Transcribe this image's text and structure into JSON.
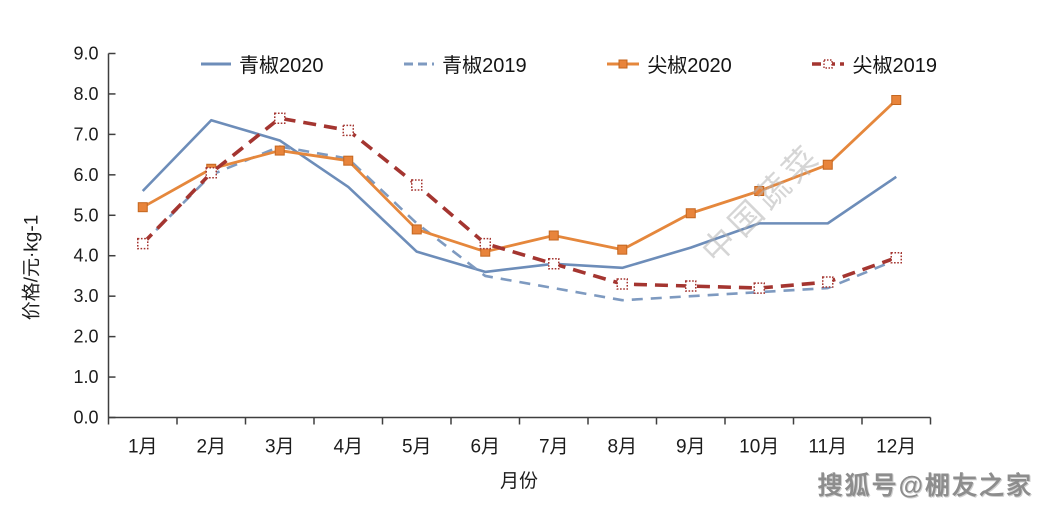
{
  "watermarks": {
    "center": "中国蔬菜",
    "bottom_right": "搜狐号@棚友之家"
  },
  "chart_data": {
    "type": "line",
    "title": "",
    "xlabel": "月份",
    "ylabel": "价格/元·kg-1",
    "ylim": [
      0.0,
      9.0
    ],
    "ytick_step": 1.0,
    "ytick_labels": [
      "0.0",
      "1.0",
      "2.0",
      "3.0",
      "4.0",
      "5.0",
      "6.0",
      "7.0",
      "8.0",
      "9.0"
    ],
    "categories": [
      "1月",
      "2月",
      "3月",
      "4月",
      "5月",
      "6月",
      "7月",
      "8月",
      "9月",
      "10月",
      "11月",
      "12月"
    ],
    "grid": "off",
    "legend_position": "top",
    "series": [
      {
        "name": "青椒2020",
        "color": "#6d8db9",
        "dash": "",
        "width": 2.6,
        "marker": "none",
        "values": [
          5.6,
          7.35,
          6.85,
          5.7,
          4.1,
          3.6,
          3.8,
          3.7,
          4.2,
          4.8,
          4.8,
          5.95
        ]
      },
      {
        "name": "青椒2019",
        "color": "#7e9ac0",
        "dash": "11,8",
        "width": 2.6,
        "marker": "none",
        "values": [
          4.3,
          6.0,
          6.7,
          6.4,
          4.8,
          3.5,
          3.2,
          2.9,
          3.0,
          3.1,
          3.2,
          3.9
        ]
      },
      {
        "name": "尖椒2020",
        "color": "#e5873c",
        "dash": "",
        "width": 2.8,
        "marker": "square",
        "marker_size": 9,
        "marker_fill": "#e8843b",
        "marker_stroke": "#c4661f",
        "values": [
          5.2,
          6.15,
          6.6,
          6.35,
          4.65,
          4.1,
          4.5,
          4.15,
          5.05,
          5.6,
          6.25,
          7.85
        ]
      },
      {
        "name": "尖椒2019",
        "color": "#a43530",
        "dash": "13,8",
        "width": 3.6,
        "marker": "dotted-square",
        "marker_size": 10,
        "marker_fill": "#ffffff",
        "marker_stroke": "#a43530",
        "values": [
          4.3,
          6.05,
          7.4,
          7.1,
          5.75,
          4.3,
          3.8,
          3.3,
          3.25,
          3.2,
          3.35,
          3.95
        ]
      }
    ]
  }
}
